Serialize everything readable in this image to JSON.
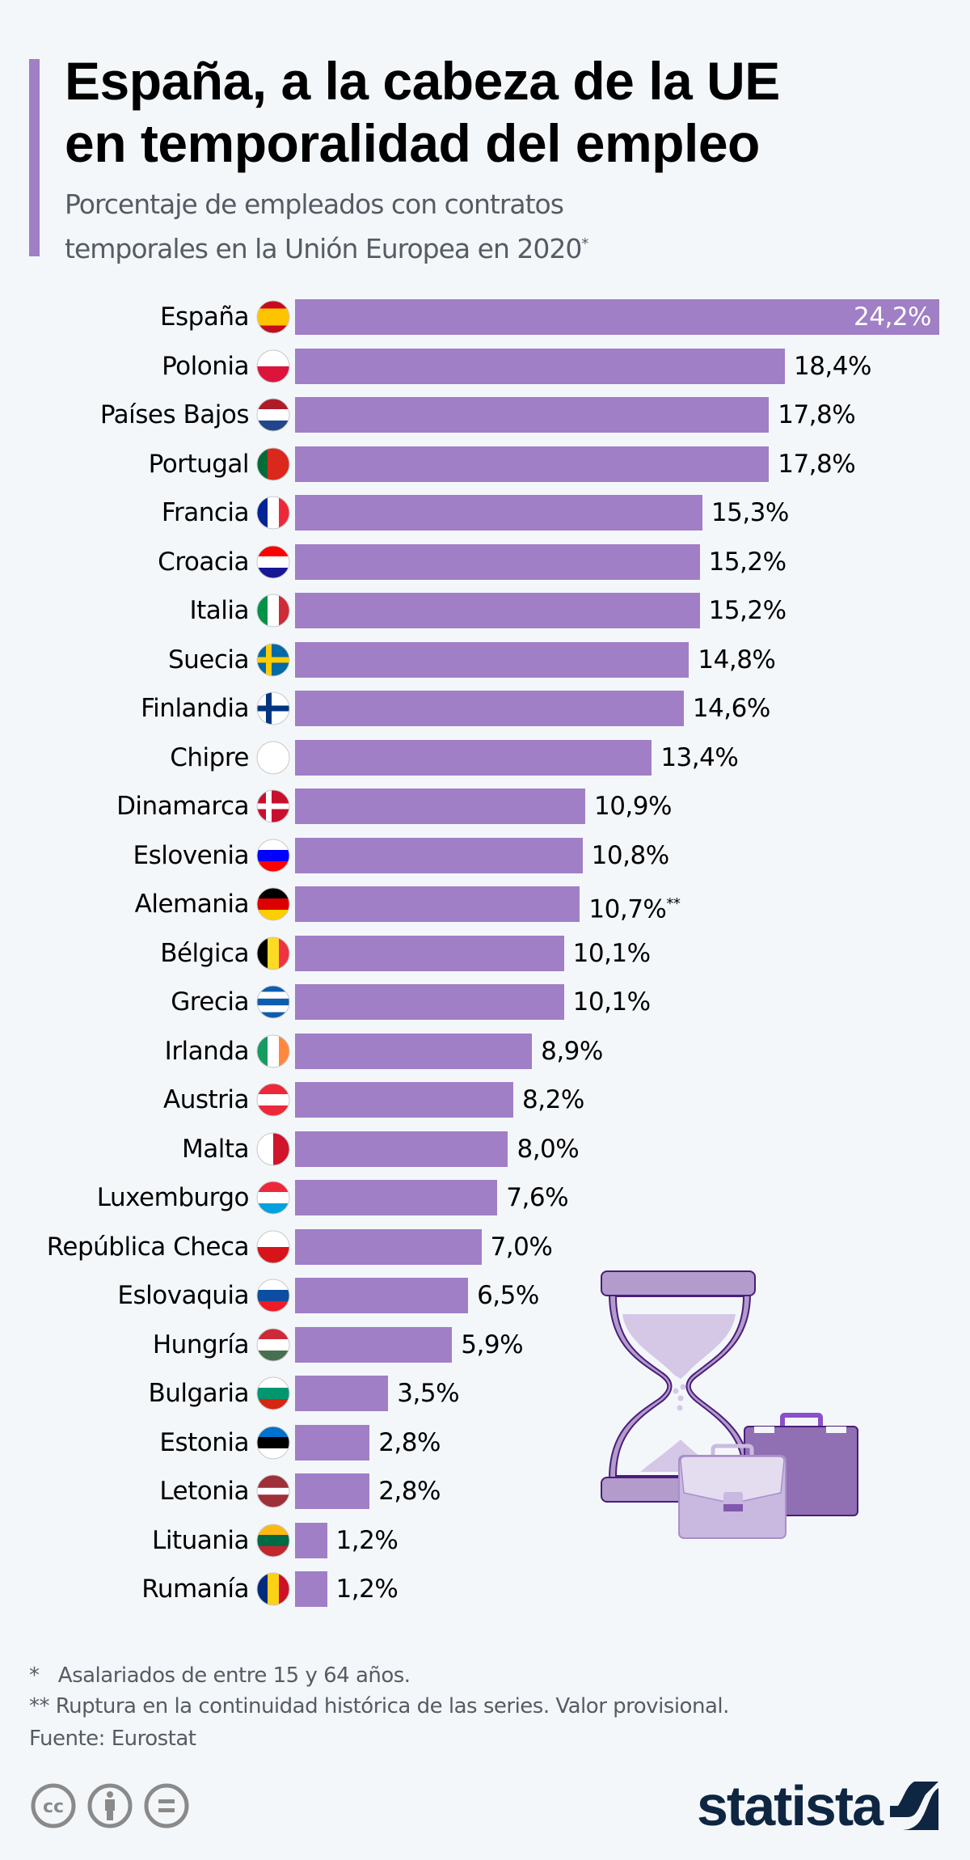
{
  "header": {
    "title_line1": "España, a la cabeza de la UE",
    "title_line2": "en temporalidad del empleo",
    "subtitle_line1": "Porcentaje de empleados con contratos",
    "subtitle_line2": "temporales en la Unión Europea en 2020",
    "subtitle_mark": "*"
  },
  "colors": {
    "bar": "#a07fc6",
    "background": "#f4f7fa",
    "logo": "#0f2642"
  },
  "chart_data": {
    "type": "bar",
    "orientation": "horizontal",
    "title": "España, a la cabeza de la UE en temporalidad del empleo",
    "subtitle": "Porcentaje de empleados con contratos temporales en la Unión Europea en 2020*",
    "xlim": [
      0,
      24.2
    ],
    "grid": false,
    "unit": "%",
    "categories": [
      "España",
      "Polonia",
      "Países Bajos",
      "Portugal",
      "Francia",
      "Croacia",
      "Italia",
      "Suecia",
      "Finlandia",
      "Chipre",
      "Dinamarca",
      "Eslovenia",
      "Alemania",
      "Bélgica",
      "Grecia",
      "Irlanda",
      "Austria",
      "Malta",
      "Luxemburgo",
      "República Checa",
      "Eslovaquia",
      "Hungría",
      "Bulgaria",
      "Estonia",
      "Letonia",
      "Lituania",
      "Rumanía"
    ],
    "values": [
      24.2,
      18.4,
      17.8,
      17.8,
      15.3,
      15.2,
      15.2,
      14.8,
      14.6,
      13.4,
      10.9,
      10.8,
      10.7,
      10.1,
      10.1,
      8.9,
      8.2,
      8.0,
      7.6,
      7.0,
      6.5,
      5.9,
      3.5,
      2.8,
      2.8,
      1.2,
      1.2
    ],
    "labels": [
      "24,2%",
      "18,4%",
      "17,8%",
      "17,8%",
      "15,3%",
      "15,2%",
      "15,2%",
      "14,8%",
      "14,6%",
      "13,4%",
      "10,9%",
      "10,8%",
      "10,7%",
      "10,1%",
      "10,1%",
      "8,9%",
      "8,2%",
      "8,0%",
      "7,6%",
      "7,0%",
      "6,5%",
      "5,9%",
      "3,5%",
      "2,8%",
      "2,8%",
      "1,2%",
      "1,2%"
    ],
    "label_marks": {
      "Alemania": "**"
    },
    "flags": [
      {
        "o": "h",
        "c": [
          "#c60b1e",
          "#ffc400",
          "#ffc400",
          "#c60b1e"
        ]
      },
      {
        "o": "h",
        "c": [
          "#ffffff",
          "#dc143c"
        ]
      },
      {
        "o": "h",
        "c": [
          "#ae1c28",
          "#ffffff",
          "#21468b"
        ]
      },
      {
        "o": "v",
        "c": [
          "#046a38",
          "#da291c",
          "#da291c"
        ]
      },
      {
        "o": "v",
        "c": [
          "#002395",
          "#ffffff",
          "#ed2939"
        ]
      },
      {
        "o": "h",
        "c": [
          "#ff0000",
          "#ffffff",
          "#171796"
        ]
      },
      {
        "o": "v",
        "c": [
          "#009246",
          "#ffffff",
          "#ce2b37"
        ]
      },
      {
        "o": "n",
        "c": [
          "#006aa7",
          "#fecc00"
        ]
      },
      {
        "o": "n",
        "c": [
          "#ffffff",
          "#003580"
        ]
      },
      {
        "o": "h",
        "c": [
          "#ffffff"
        ]
      },
      {
        "o": "n",
        "c": [
          "#c8102e",
          "#ffffff"
        ]
      },
      {
        "o": "h",
        "c": [
          "#ffffff",
          "#0000ff",
          "#ff0000"
        ]
      },
      {
        "o": "h",
        "c": [
          "#000000",
          "#dd0000",
          "#ffce00"
        ]
      },
      {
        "o": "v",
        "c": [
          "#000000",
          "#fdda24",
          "#ef3340"
        ]
      },
      {
        "o": "h",
        "c": [
          "#0d5eaf",
          "#ffffff",
          "#0d5eaf",
          "#ffffff",
          "#0d5eaf"
        ]
      },
      {
        "o": "v",
        "c": [
          "#169b62",
          "#ffffff",
          "#ff883e"
        ]
      },
      {
        "o": "h",
        "c": [
          "#ed2939",
          "#ffffff",
          "#ed2939"
        ]
      },
      {
        "o": "v",
        "c": [
          "#ffffff",
          "#cf142b"
        ]
      },
      {
        "o": "h",
        "c": [
          "#ed2939",
          "#ffffff",
          "#00a1de"
        ]
      },
      {
        "o": "h",
        "c": [
          "#ffffff",
          "#d7141a"
        ]
      },
      {
        "o": "h",
        "c": [
          "#ffffff",
          "#0b4ea2",
          "#ee1c25"
        ]
      },
      {
        "o": "h",
        "c": [
          "#ce2939",
          "#ffffff",
          "#477050"
        ]
      },
      {
        "o": "h",
        "c": [
          "#ffffff",
          "#00966e",
          "#d62612"
        ]
      },
      {
        "o": "h",
        "c": [
          "#0072ce",
          "#000000",
          "#ffffff"
        ]
      },
      {
        "o": "h",
        "c": [
          "#9e3039",
          "#9e3039",
          "#ffffff",
          "#9e3039",
          "#9e3039"
        ]
      },
      {
        "o": "h",
        "c": [
          "#fdb913",
          "#006a44",
          "#c1272d"
        ]
      },
      {
        "o": "v",
        "c": [
          "#002b7f",
          "#fcd116",
          "#ce1126"
        ]
      }
    ]
  },
  "footnotes": {
    "note1": "*   Asalariados de entre 15 y 64 años.",
    "note2": "** Ruptura en la continuidad histórica de las series. Valor provisional.",
    "source": "Fuente: Eurostat"
  },
  "footer": {
    "license_icons": [
      "cc-icon",
      "attribution-icon",
      "no-derivatives-icon"
    ],
    "logo": "statista"
  }
}
